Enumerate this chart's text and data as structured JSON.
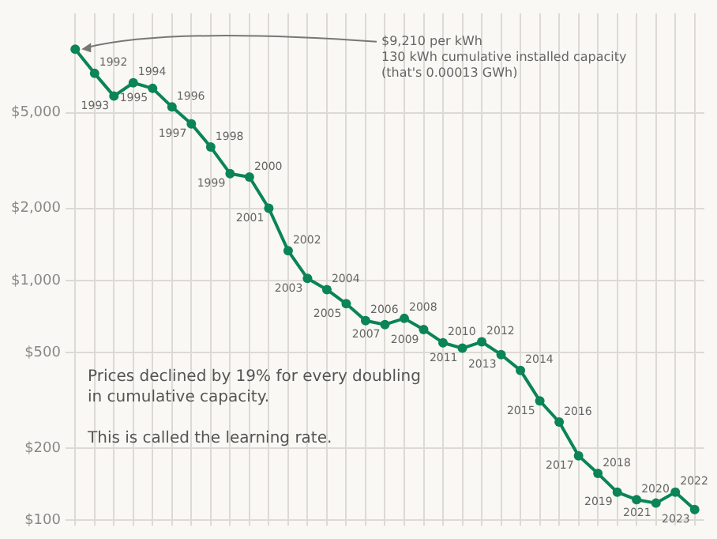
{
  "chart_data": {
    "type": "line",
    "categories": [
      null,
      null,
      null,
      null,
      null,
      null,
      null,
      null,
      null,
      null,
      null,
      null,
      null,
      null,
      null,
      null,
      null,
      null,
      null,
      null,
      null,
      null,
      null,
      null,
      null,
      null,
      null,
      null,
      null,
      null,
      null,
      null,
      null
    ],
    "series": [
      {
        "color": "#0b8457",
        "values": [
          9210,
          7300,
          5870,
          6670,
          6320,
          5290,
          4500,
          3600,
          2790,
          2700,
          2000,
          1330,
          1020,
          916,
          800,
          680,
          655,
          695,
          624,
          550,
          522,
          555,
          491,
          422,
          315,
          257,
          186,
          157,
          131,
          122,
          118,
          131,
          111
        ]
      }
    ],
    "value_labels": [
      null,
      "1992",
      "1993",
      "1994",
      "1995",
      "1996",
      "1997",
      "1998",
      "1999",
      "2000",
      "2001",
      "2002",
      "2003",
      "2004",
      "2005",
      "2006",
      "2007",
      "2008",
      "2009",
      "2010",
      "2011",
      "2012",
      "2013",
      "2014",
      "2015",
      "2016",
      "2017",
      "2018",
      "2019",
      "2020",
      "2021",
      "2022",
      "2023"
    ],
    "log": "y",
    "ylim": [
      95,
      13000
    ],
    "yticks": [
      {
        "value": 100,
        "label": "$100"
      },
      {
        "value": 200,
        "label": "$200"
      },
      {
        "value": 500,
        "label": "$500"
      },
      {
        "value": 1000,
        "label": "$1,000"
      },
      {
        "value": 2000,
        "label": "$2,000"
      },
      {
        "value": 5000,
        "label": "$5,000"
      }
    ],
    "tick_labels": "y",
    "grid": true,
    "marker": "circle",
    "line_style": "solid",
    "legend": false,
    "annotations": [
      "$9,210 per kWh\n130 kWh cumulative installed capacity\n(that's 0.00013 GWh)",
      "Prices declined by 19% for every doubling\nin cumulative capacity.\n\nThis is called the learning rate."
    ]
  }
}
